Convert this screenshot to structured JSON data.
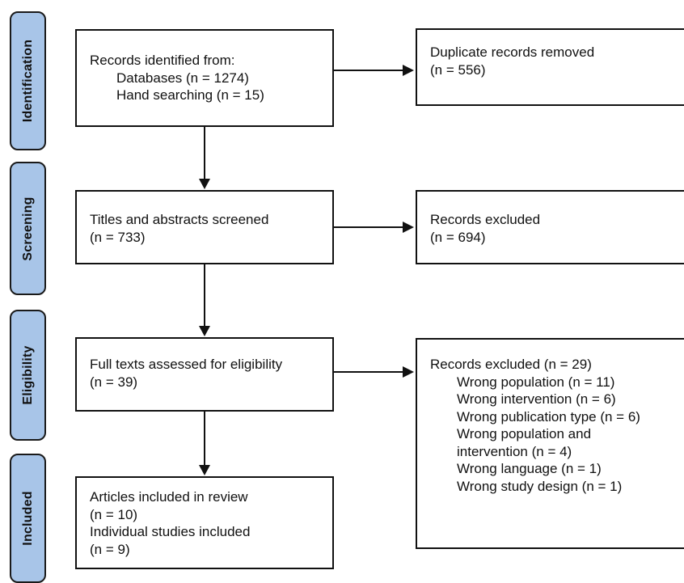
{
  "stages": {
    "identification": "Identification",
    "screening": "Screening",
    "eligibility": "Eligibility",
    "included": "Included"
  },
  "identified": {
    "title": "Records identified from:",
    "databases": "Databases (n = 1274)",
    "hand_searching": "Hand searching (n = 15)"
  },
  "duplicates": {
    "title": "Duplicate records removed",
    "count": "(n = 556)"
  },
  "screened": {
    "title": "Titles and abstracts screened",
    "count": "(n = 733)"
  },
  "screen_excluded": {
    "title": "Records excluded",
    "count": "(n = 694)"
  },
  "fulltext": {
    "title": "Full texts assessed for eligibility",
    "count": "(n = 39)"
  },
  "fulltext_excluded": {
    "title": "Records excluded (n = 29)",
    "reasons": [
      "Wrong population (n = 11)",
      "Wrong intervention (n = 6)",
      "Wrong publication type (n = 6)",
      "Wrong population and",
      "intervention (n = 4)",
      "Wrong language (n = 1)",
      "Wrong study design (n = 1)"
    ]
  },
  "included": {
    "articles": "Articles included in review",
    "articles_count": "(n = 10)",
    "studies": "Individual studies included",
    "studies_count": "(n = 9)"
  }
}
